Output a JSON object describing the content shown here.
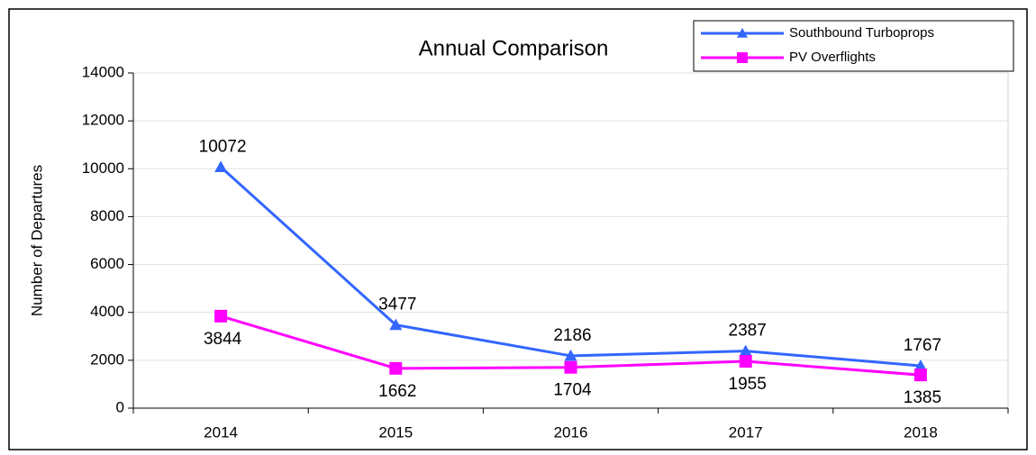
{
  "chart_data": {
    "type": "line",
    "title": "Annual Comparison",
    "y_label": "Number of Departures",
    "categories": [
      "2014",
      "2015",
      "2016",
      "2017",
      "2018"
    ],
    "series": [
      {
        "name": "Southbound Turboprops",
        "color": "#3366ff",
        "marker": "triangle",
        "values": [
          10072,
          3477,
          2186,
          2387,
          1767
        ]
      },
      {
        "name": "PV Overflights",
        "color": "#ff00ff",
        "marker": "square",
        "values": [
          3844,
          1662,
          1704,
          1955,
          1385
        ]
      }
    ],
    "ylim": [
      0,
      14000
    ],
    "yticks": [
      0,
      2000,
      4000,
      6000,
      8000,
      10000,
      12000,
      14000
    ],
    "grid": true,
    "legend": "top-right"
  }
}
